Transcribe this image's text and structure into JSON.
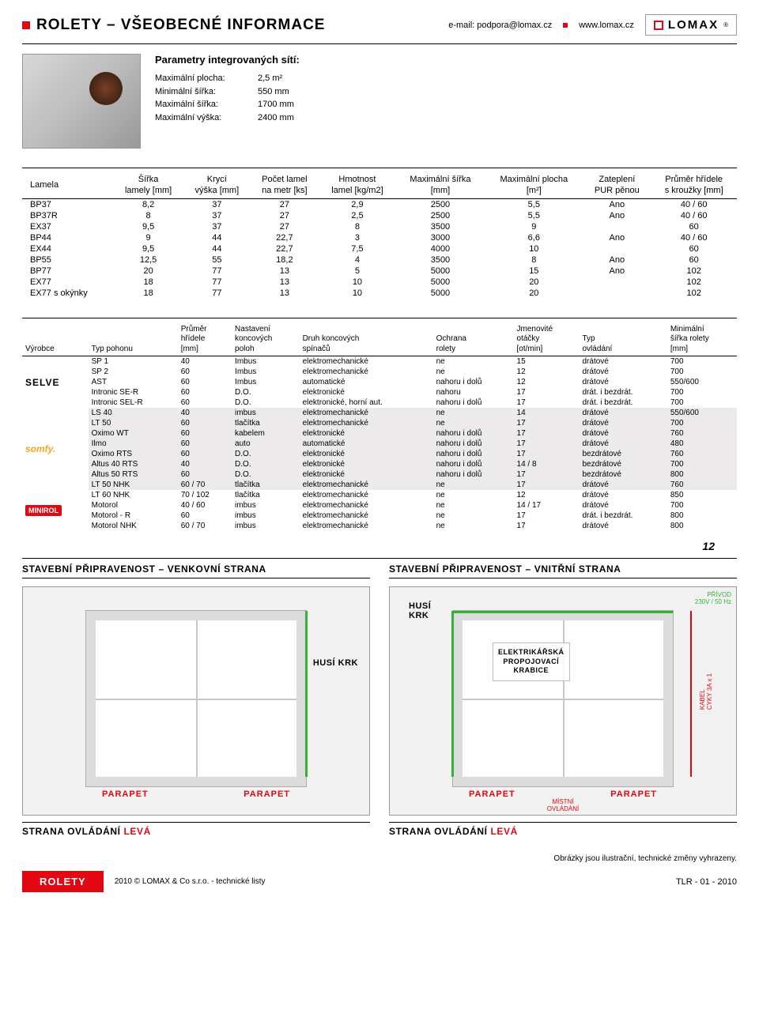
{
  "header": {
    "title": "ROLETY – VŠEOBECNÉ INFORMACE",
    "email": "e-mail: podpora@lomax.cz",
    "web": "www.lomax.cz",
    "brand": "LOMAX"
  },
  "params": {
    "heading": "Parametry integrovaných sítí:",
    "rows": [
      {
        "l": "Maximální plocha:",
        "v": "2,5 m²"
      },
      {
        "l": "Minimální šířka:",
        "v": "550 mm"
      },
      {
        "l": "Maximální šířka:",
        "v": "1700 mm"
      },
      {
        "l": "Maximální výška:",
        "v": "2400 mm"
      }
    ]
  },
  "t1": {
    "headers": [
      {
        "a": "Lamela",
        "b": ""
      },
      {
        "a": "Šířka",
        "b": "lamely [mm]"
      },
      {
        "a": "Krycí",
        "b": "výška [mm]"
      },
      {
        "a": "Počet lamel",
        "b": "na metr [ks]"
      },
      {
        "a": "Hmotnost",
        "b": "lamel [kg/m2]"
      },
      {
        "a": "Maximální šířka",
        "b": "[mm]"
      },
      {
        "a": "Maximální plocha",
        "b": "[m²]"
      },
      {
        "a": "Zateplení",
        "b": "PUR pěnou"
      },
      {
        "a": "Průměr hřídele",
        "b": "s kroužky [mm]"
      }
    ],
    "rows": [
      [
        "BP37",
        "8,2",
        "37",
        "27",
        "2,9",
        "2500",
        "5,5",
        "Ano",
        "40 / 60"
      ],
      [
        "BP37R",
        "8",
        "37",
        "27",
        "2,5",
        "2500",
        "5,5",
        "Ano",
        "40 / 60"
      ],
      [
        "EX37",
        "9,5",
        "37",
        "27",
        "8",
        "3500",
        "9",
        "",
        "60"
      ],
      [
        "BP44",
        "9",
        "44",
        "22,7",
        "3",
        "3000",
        "6,6",
        "Ano",
        "40 / 60"
      ],
      [
        "EX44",
        "9,5",
        "44",
        "22,7",
        "7,5",
        "4000",
        "10",
        "",
        "60"
      ],
      [
        "BP55",
        "12,5",
        "55",
        "18,2",
        "4",
        "3500",
        "8",
        "Ano",
        "60"
      ],
      [
        "BP77",
        "20",
        "77",
        "13",
        "5",
        "5000",
        "15",
        "Ano",
        "102"
      ],
      [
        "EX77",
        "18",
        "77",
        "13",
        "10",
        "5000",
        "20",
        "",
        "102"
      ],
      [
        "EX77 s okýnky",
        "18",
        "77",
        "13",
        "10",
        "5000",
        "20",
        "",
        "102"
      ]
    ]
  },
  "t2": {
    "headers": [
      {
        "a": "Výrobce",
        "b": ""
      },
      {
        "a": "Typ pohonu",
        "b": ""
      },
      {
        "a": "Průměr",
        "b": "hřídele",
        "c": "[mm]"
      },
      {
        "a": "Nastavení",
        "b": "koncových",
        "c": "poloh"
      },
      {
        "a": "Druh koncových",
        "b": "spínačů",
        "c": ""
      },
      {
        "a": "Ochrana",
        "b": "rolety",
        "c": ""
      },
      {
        "a": "Jmenovité",
        "b": "otáčky",
        "c": "[ot/min]"
      },
      {
        "a": "Typ",
        "b": "ovládání",
        "c": ""
      },
      {
        "a": "Minimální",
        "b": "šířka rolety",
        "c": "[mm]"
      }
    ],
    "groups": [
      {
        "logo": "SELVE",
        "rows": [
          {
            "g": false,
            "c": [
              "",
              "SP 1",
              "40",
              "Imbus",
              "elektromechanické",
              "ne",
              "15",
              "drátové",
              "700"
            ]
          },
          {
            "g": false,
            "c": [
              "",
              "SP 2",
              "60",
              "Imbus",
              "elektromechanické",
              "ne",
              "12",
              "drátové",
              "700"
            ]
          },
          {
            "g": false,
            "c": [
              "",
              "AST",
              "60",
              "Imbus",
              "automatické",
              "nahoru i dolů",
              "12",
              "drátové",
              "550/600"
            ]
          },
          {
            "g": false,
            "c": [
              "",
              "Intronic SE-R",
              "60",
              "D.O.",
              "elektronické",
              "nahoru",
              "17",
              "drát. i bezdrát.",
              "700"
            ]
          },
          {
            "g": false,
            "c": [
              "",
              "Intronic SEL-R",
              "60",
              "D.O.",
              "elektronické, horní aut.",
              "nahoru i dolů",
              "17",
              "drát. i bezdrát.",
              "700"
            ]
          }
        ]
      },
      {
        "logo": "somfy.",
        "rows": [
          {
            "g": true,
            "c": [
              "",
              "LS 40",
              "40",
              "imbus",
              "elektromechanické",
              "ne",
              "14",
              "drátové",
              "550/600"
            ]
          },
          {
            "g": true,
            "c": [
              "",
              "LT 50",
              "60",
              "tlačítka",
              "elektromechanické",
              "ne",
              "17",
              "drátové",
              "700"
            ]
          },
          {
            "g": true,
            "c": [
              "",
              "Oximo WT",
              "60",
              "kabelem",
              "elektronické",
              "nahoru i dolů",
              "17",
              "drátové",
              "760"
            ]
          },
          {
            "g": true,
            "c": [
              "",
              "Ilmo",
              "60",
              "auto",
              "automatické",
              "nahoru i dolů",
              "17",
              "drátové",
              "480"
            ]
          },
          {
            "g": true,
            "c": [
              "",
              "Oximo RTS",
              "60",
              "D.O.",
              "elektronické",
              "nahoru i dolů",
              "17",
              "bezdrátové",
              "760"
            ]
          },
          {
            "g": true,
            "c": [
              "",
              "Altus 40 RTS",
              "40",
              "D.O.",
              "elektronické",
              "nahoru i dolů",
              "14 / 8",
              "bezdrátové",
              "700"
            ]
          },
          {
            "g": true,
            "c": [
              "",
              "Altus 50 RTS",
              "60",
              "D.O.",
              "elektronické",
              "nahoru i dolů",
              "17",
              "bezdrátové",
              "800"
            ]
          },
          {
            "g": true,
            "c": [
              "",
              "LT 50 NHK",
              "60 / 70",
              "tlačítka",
              "elektromechanické",
              "ne",
              "17",
              "drátové",
              "760"
            ]
          }
        ]
      },
      {
        "logo": "MINIROL",
        "rows": [
          {
            "g": false,
            "c": [
              "",
              "LT 60 NHK",
              "70 / 102",
              "tlačítka",
              "elektromechanické",
              "ne",
              "12",
              "drátové",
              "850"
            ]
          },
          {
            "g": false,
            "c": [
              "",
              "Motorol",
              "40 / 60",
              "imbus",
              "elektromechanické",
              "ne",
              "14 / 17",
              "drátové",
              "700"
            ]
          },
          {
            "g": false,
            "c": [
              "",
              "Motorol - R",
              "60",
              "imbus",
              "elektromechanické",
              "ne",
              "17",
              "drát. i bezdrát.",
              "800"
            ]
          },
          {
            "g": false,
            "c": [
              "",
              "Motorol NHK",
              "60 / 70",
              "imbus",
              "elektromechanické",
              "ne",
              "17",
              "drátové",
              "800"
            ]
          }
        ]
      }
    ]
  },
  "prep": {
    "left": "STAVEBNÍ PŘIPRAVENOST – VENKOVNÍ STRANA",
    "right": "STAVEBNÍ PŘIPRAVENOST – VNITŘNÍ STRANA",
    "husi": "HUSÍ KRK",
    "husi2": "HUSÍ\nKRK",
    "elek": "ELEKTRIKÁŘSKÁ\nPROPOJOVACÍ\nKRABICE",
    "privod": "PŘÍVOD\n230V / 50 Hz",
    "kabel": "KABEL\nCYKY 3A x 1",
    "mistni": "MÍSTNÍ\nOVLÁDÁNÍ",
    "parapet": "PARAPET",
    "strana_a": "STRANA OVLÁDÁNÍ ",
    "strana_b": "LEVÁ"
  },
  "note": "Obrázky jsou ilustrační, technické změny vyhrazeny.",
  "footer": {
    "tab": "ROLETY",
    "mid": "2010 © LOMAX & Co s.r.o. - technické listy",
    "right": "TLR - 01 - 2010",
    "num": "12"
  }
}
